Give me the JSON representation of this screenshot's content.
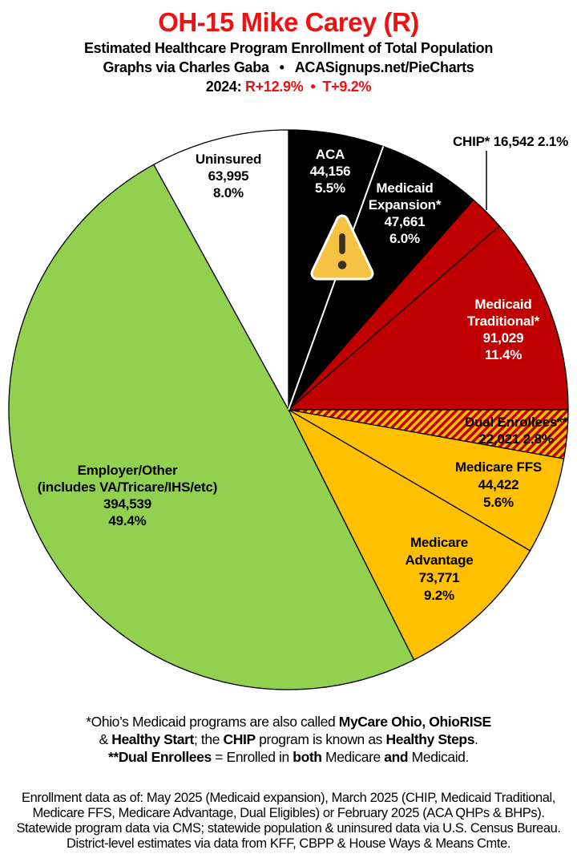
{
  "header": {
    "title": "OH-15 Mike Carey (R)",
    "subtitle": "Estimated Healthcare Program Enrollment of Total Population",
    "credit_left": "Graphs via Charles Gaba",
    "credit_bullet": "•",
    "credit_right": "ACASignups.net/PieCharts",
    "partisan_prefix": "2024:",
    "partisan_r": "R+12.9%",
    "partisan_bullet": "•",
    "partisan_t": "T+9.2%"
  },
  "colors": {
    "title_red": "#EE1111",
    "slice_black": "#000000",
    "slice_dark_red": "#C00000",
    "slice_orange": "#FFC000",
    "slice_green": "#92D050",
    "slice_white": "#FFFFFF",
    "hatch_stripe": "#C00000",
    "hatch_background": "#FFC000",
    "warning_triangle_fill": "#F5C243",
    "warning_glyph": "#3B3123"
  },
  "icons": {
    "warning": "warning-triangle-exclamation"
  },
  "chart_data": {
    "type": "pie",
    "title": "Estimated Healthcare Program Enrollment of Total Population",
    "start_angle_deg": 0,
    "direction": "clockwise",
    "total_pct": 100.0,
    "slices": [
      {
        "name": "ACA",
        "value": 44156,
        "pct": 5.5,
        "color": "#000000",
        "text_color": "#FFFFFF",
        "label_lines": [
          "ACA",
          "44,156",
          "5.5%"
        ]
      },
      {
        "name": "Medicaid Expansion",
        "value": 47661,
        "pct": 6.0,
        "color": "#000000",
        "text_color": "#FFFFFF",
        "label_lines": [
          "Medicaid",
          "Expansion*",
          "47,661",
          "6.0%"
        ]
      },
      {
        "name": "CHIP",
        "value": 16542,
        "pct": 2.1,
        "color": "#C00000",
        "text_color": "#000000",
        "label_outside": true,
        "label_lines": [
          "CHIP* 16,542 2.1%"
        ]
      },
      {
        "name": "Medicaid Traditional",
        "value": 91029,
        "pct": 11.4,
        "color": "#C00000",
        "text_color": "#FFFFFF",
        "label_lines": [
          "Medicaid",
          "Traditional*",
          "91,029",
          "11.4%"
        ]
      },
      {
        "name": "Dual Enrollees",
        "value": 22021,
        "pct": 2.8,
        "color": "#FFC000",
        "hatch": true,
        "text_color": "#000000",
        "label_lines": [
          "Dual Enrollees**",
          "22,021 2.8%"
        ]
      },
      {
        "name": "Medicare FFS",
        "value": 44422,
        "pct": 5.6,
        "color": "#FFC000",
        "text_color": "#000000",
        "label_lines": [
          "Medicare FFS",
          "44,422",
          "5.6%"
        ]
      },
      {
        "name": "Medicare Advantage",
        "value": 73771,
        "pct": 9.2,
        "color": "#FFC000",
        "text_color": "#000000",
        "label_lines": [
          "Medicare",
          "Advantage",
          "73,771",
          "9.2%"
        ]
      },
      {
        "name": "Employer/Other",
        "value": 394539,
        "pct": 49.4,
        "color": "#92D050",
        "text_color": "#000000",
        "label_lines": [
          "Employer/Other",
          "(includes VA/Tricare/IHS/etc)",
          "394,539",
          "49.4%"
        ]
      },
      {
        "name": "Uninsured",
        "value": 63995,
        "pct": 8.0,
        "color": "#FFFFFF",
        "text_color": "#000000",
        "label_lines": [
          "Uninsured",
          "63,995",
          "8.0%"
        ]
      }
    ]
  },
  "footnote": {
    "lines": [
      [
        {
          "t": "*Ohio’s Medicaid programs are also called ",
          "b": 0
        },
        {
          "t": "MyCare Ohio, OhioRISE",
          "b": 1
        }
      ],
      [
        {
          "t": "& ",
          "b": 0
        },
        {
          "t": "Healthy Start",
          "b": 1
        },
        {
          "t": "; the ",
          "b": 0
        },
        {
          "t": "CHIP",
          "b": 1
        },
        {
          "t": " program is known as ",
          "b": 0
        },
        {
          "t": "Healthy Steps",
          "b": 1
        },
        {
          "t": ".",
          "b": 0
        }
      ],
      [
        {
          "t": "**Dual Enrollees",
          "b": 1
        },
        {
          "t": " = Enrolled in ",
          "b": 0
        },
        {
          "t": "both",
          "b": 1
        },
        {
          "t": " Medicare ",
          "b": 0
        },
        {
          "t": "and",
          "b": 1
        },
        {
          "t": " Medicaid.",
          "b": 0
        }
      ]
    ]
  },
  "source_note": {
    "lines": [
      "Enrollment data as of: May 2025 (Medicaid expansion), March 2025 (CHIP, Medicaid Traditional,",
      "Medicare FFS, Medicare Advantage, Dual Eligibles) or February 2025 (ACA QHPs & BHPs).",
      "Statewide program data via CMS; statewide population & uninsured data via U.S. Census Bureau.",
      "District-level estimates via data from KFF, CBPP & House Ways & Means Cmte."
    ]
  }
}
